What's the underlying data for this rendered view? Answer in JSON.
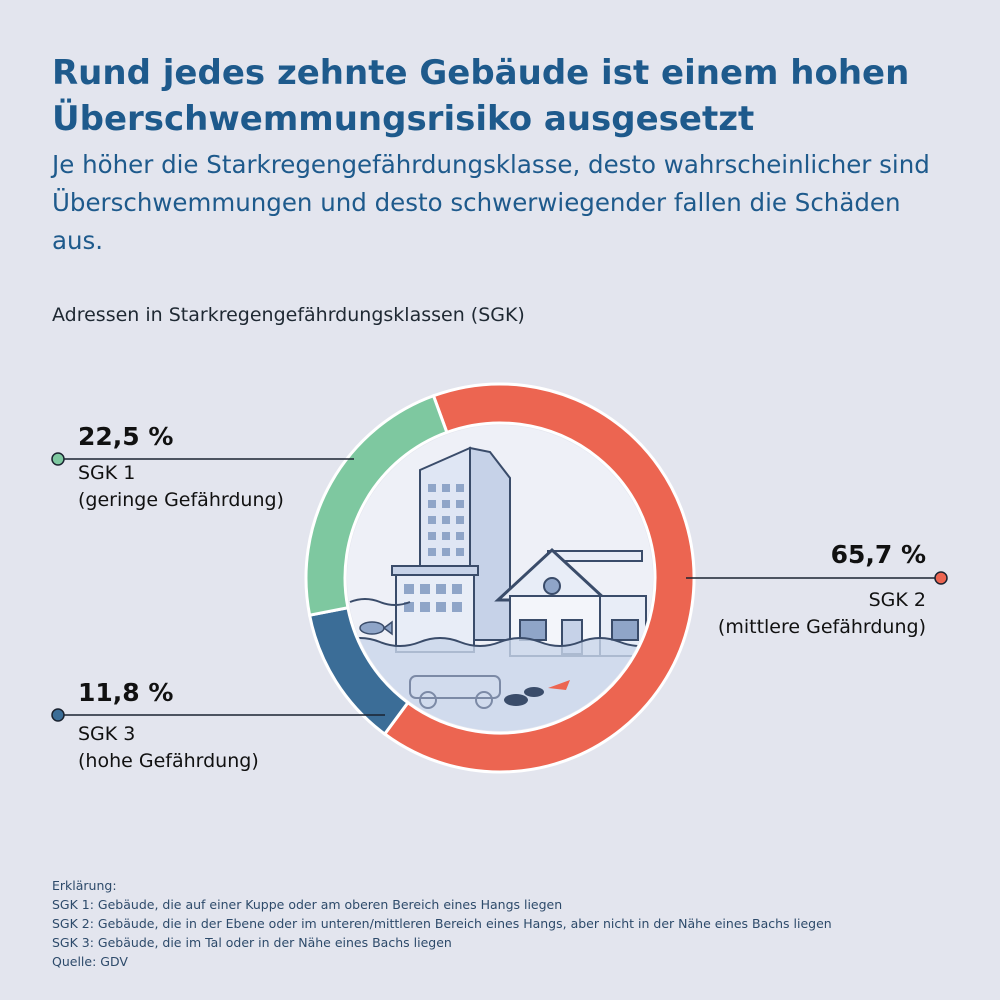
{
  "title": "Rund jedes zehnte Gebäude ist einem hohen Überschwemmungsrisiko ausgesetzt",
  "subtitle": "Je höher die Starkregengefährdungsklasse, desto wahrscheinlicher sind Überschwemmungen und desto schwerwiegender fallen die Schäden aus.",
  "chart_caption": "Adressen in Starkregengefährdungsklassen (SGK)",
  "chart_data": {
    "type": "pie",
    "title": "Adressen in Starkregengefährdungsklassen (SGK)",
    "unit": "%",
    "slices": [
      {
        "name": "SGK 1",
        "desc": "(geringe Gefährdung)",
        "value": 22.5,
        "label": "22,5 %",
        "color": "#7ec8a0"
      },
      {
        "name": "SGK 2",
        "desc": "(mittlere Gefährdung)",
        "value": 65.7,
        "label": "65,7 %",
        "color": "#ec6551"
      },
      {
        "name": "SGK 3",
        "desc": "(hohe Gefährdung)",
        "value": 11.8,
        "label": "11,8 %",
        "color": "#3b6d97"
      }
    ]
  },
  "notes": {
    "heading": "Erklärung:",
    "lines": [
      "SGK 1: Gebäude, die auf einer Kuppe oder am oberen Bereich eines Hangs liegen",
      "SGK 2: Gebäude, die in der Ebene oder im unteren/mittleren Bereich eines Hangs, aber nicht in der Nähe eines Bachs liegen",
      "SGK 3: Gebäude, die im Tal oder in der Nähe eines Bachs liegen"
    ],
    "source": "Quelle: GDV"
  }
}
